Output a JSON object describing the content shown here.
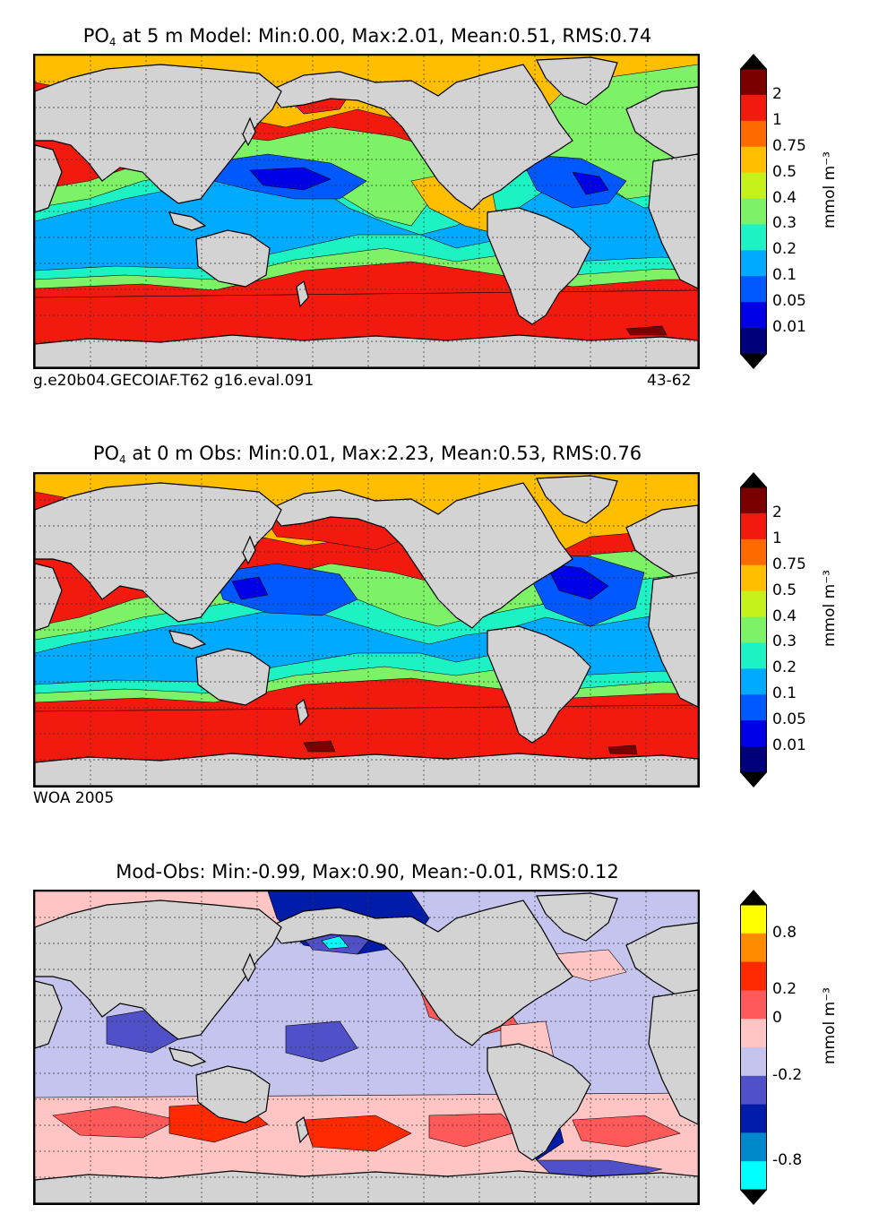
{
  "panels": [
    {
      "title_prefix": "PO",
      "title_sub": "4",
      "title_rest": "  at 5 m Model: Min:0.00, Max:2.01, Mean:0.51, RMS:0.74",
      "footer_left": "g.e20b04.GECOIAF.T62 g16.eval.091",
      "footer_right": "43-62",
      "unit": "mmol m⁻³",
      "tick_labels": [
        "2",
        "1",
        "0.75",
        "0.5",
        "0.4",
        "0.3",
        "0.2",
        "0.1",
        "0.05",
        "0.01"
      ],
      "colors": [
        "#7a0000",
        "#f2190e",
        "#ff6a00",
        "#ffbf00",
        "#c6f21b",
        "#7df266",
        "#1cf2c4",
        "#00aaff",
        "#0058ff",
        "#0000e6",
        "#00007a"
      ]
    },
    {
      "title_prefix": "PO",
      "title_sub": "4",
      "title_rest": "  at 0 m Obs: Min:0.01, Max:2.23, Mean:0.53, RMS:0.76",
      "footer_left": "WOA 2005",
      "footer_right": "",
      "unit": "mmol m⁻³",
      "tick_labels": [
        "2",
        "1",
        "0.75",
        "0.5",
        "0.4",
        "0.3",
        "0.2",
        "0.1",
        "0.05",
        "0.01"
      ],
      "colors": [
        "#7a0000",
        "#f2190e",
        "#ff6a00",
        "#ffbf00",
        "#c6f21b",
        "#7df266",
        "#1cf2c4",
        "#00aaff",
        "#0058ff",
        "#0000e6",
        "#00007a"
      ]
    },
    {
      "title_prefix": "Mod-Obs: Min:-0.99, Max:0.90, Mean:-0.01, RMS:0.12",
      "title_sub": "",
      "title_rest": "",
      "footer_left": "",
      "footer_right": "",
      "unit": "mmol m⁻³",
      "tick_labels": [
        "0.8",
        "0.2",
        "0",
        "-0.2",
        "-0.8"
      ],
      "colors": [
        "#ffff00",
        "#ff8c00",
        "#ff2a00",
        "#ff5a5a",
        "#ffc4c4",
        "#c4c4ee",
        "#5050c8",
        "#001ca8",
        "#0088cc",
        "#00ffff"
      ]
    }
  ],
  "map": {
    "land_color": "#d3d3d3",
    "grid_color": "#333333"
  }
}
